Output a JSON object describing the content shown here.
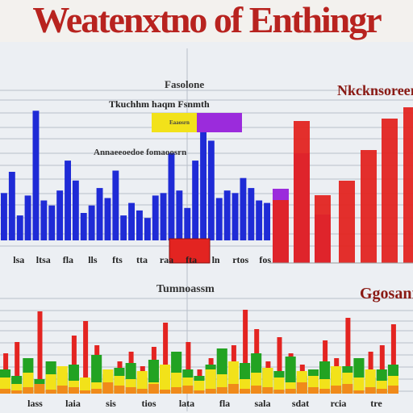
{
  "title": "Weatenxtno of Enthingr",
  "colors": {
    "blue": "#1f2bd6",
    "purple": "#9b2bdc",
    "red": "#e32421",
    "green": "#22a322",
    "yellow": "#f2e21a",
    "orange": "#f08a1a",
    "title_red": "#b8231f",
    "grid": "#b9bfc9"
  },
  "chart_data": [
    {
      "type": "bar",
      "panel": "top-left",
      "title": "Fasolone",
      "subtitle": "Tkuchhm haqm Fsnmth",
      "annotation": "Annaeeoedoe fomaoosrn",
      "legend": [
        "Eaaosrn"
      ],
      "category_labels": [
        "lsa",
        "ltsa",
        "fla",
        "lls",
        "fts",
        "tta",
        "raa",
        "fta",
        "ln",
        "rtos",
        "fos"
      ],
      "values": [
        38,
        55,
        20,
        36,
        104,
        32,
        28,
        40,
        64,
        48,
        22,
        28,
        42,
        34,
        56,
        20,
        30,
        24,
        18,
        36,
        38,
        70,
        40,
        26,
        64,
        88,
        80,
        34,
        40,
        38,
        50,
        42,
        32,
        30
      ],
      "ylim": [
        0,
        110
      ]
    },
    {
      "type": "bar",
      "panel": "top-right",
      "title": "Nkcknsoreer",
      "series": [
        {
          "values": [
            92,
            136,
            60
          ]
        },
        {
          "values": [
            78,
            176,
            84,
            102,
            140,
            179,
            193
          ]
        }
      ],
      "ylim": [
        0,
        200
      ]
    },
    {
      "type": "bar",
      "panel": "bottom",
      "title": "Tumnoassm",
      "side_label": "Ggosanr",
      "category_labels": [
        "lass",
        "laia",
        "sis",
        "tios",
        "lata",
        "fla",
        "sala",
        "sdat",
        "rcia",
        "tre"
      ],
      "series": [
        {
          "values": [
            50,
            64,
            16,
            102,
            22,
            34,
            72,
            90,
            60,
            30,
            40,
            52,
            34,
            58,
            88,
            20,
            64,
            30,
            44,
            24,
            60,
            104,
            80,
            40,
            70,
            50,
            36,
            30,
            66,
            44,
            94,
            28,
            52,
            60,
            86
          ]
        },
        {
          "values": [
            30,
            22,
            44,
            18,
            40,
            26,
            36,
            14,
            48,
            24,
            32,
            38,
            20,
            42,
            28,
            52,
            30,
            22,
            36,
            56,
            24,
            38,
            50,
            32,
            28,
            46,
            22,
            30,
            40,
            26,
            34,
            44,
            20,
            30,
            36
          ]
        },
        {
          "values": [
            20,
            12,
            26,
            10,
            24,
            34,
            16,
            20,
            14,
            30,
            22,
            18,
            28,
            14,
            36,
            26,
            20,
            16,
            30,
            24,
            40,
            18,
            26,
            32,
            20,
            14,
            28,
            22,
            18,
            34,
            26,
            20,
            30,
            16,
            22
          ]
        },
        {
          "values": [
            6,
            4,
            8,
            12,
            5,
            10,
            8,
            4,
            6,
            14,
            10,
            8,
            6,
            12,
            5,
            8,
            10,
            4,
            6,
            8,
            12,
            6,
            10,
            8,
            5,
            6,
            14,
            8,
            6,
            10,
            12,
            4,
            8,
            6,
            10
          ]
        }
      ],
      "ylim": [
        0,
        120
      ]
    }
  ]
}
